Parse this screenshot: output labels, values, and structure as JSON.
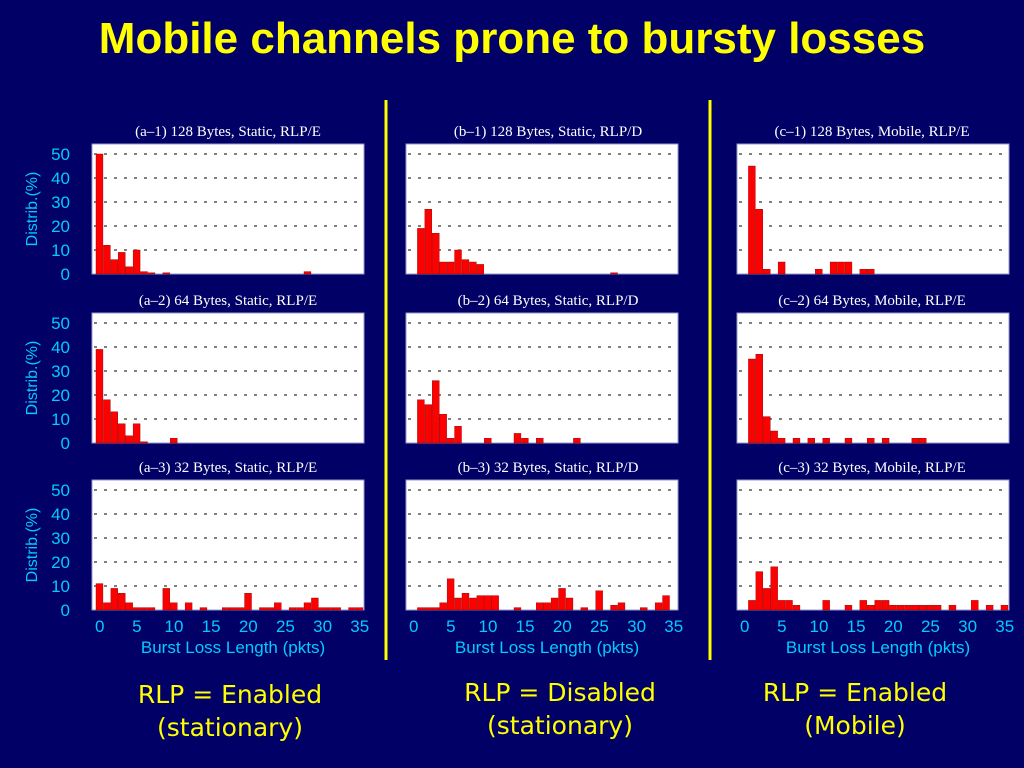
{
  "title": "Mobile channels prone to bursty losses",
  "colors": {
    "background": "#000066",
    "title": "#ffff00",
    "axis_text": "#00ccff",
    "bars": "#ff0000",
    "plot_bg": "#ffffff",
    "caption": "#ffff00",
    "separator": "#ffff00"
  },
  "captions": [
    {
      "line1": "RLP = Enabled",
      "line2": "(stationary)"
    },
    {
      "line1": "RLP = Disabled",
      "line2": "(stationary)"
    },
    {
      "line1": "RLP = Enabled",
      "line2": "(Mobile)"
    }
  ],
  "chart_data": [
    {
      "type": "bar",
      "title": "(a–1) 128 Bytes, Static, RLP/E",
      "ylabel": "Distrib.(%)",
      "xlabel": "",
      "ylim": [
        0,
        50
      ],
      "xlim": [
        0,
        35
      ],
      "yticks": [
        0,
        10,
        20,
        30,
        40,
        50
      ],
      "xticks": [],
      "x": [
        0,
        1,
        2,
        3,
        4,
        5,
        6,
        7,
        9,
        28
      ],
      "values": [
        50,
        12,
        6,
        9,
        3,
        10,
        1,
        0.5,
        0.5,
        1
      ]
    },
    {
      "type": "bar",
      "title": "(b–1) 128 Bytes, Static, RLP/D",
      "ylabel": "",
      "xlabel": "",
      "ylim": [
        0,
        50
      ],
      "xlim": [
        0,
        35
      ],
      "yticks": [],
      "xticks": [],
      "x": [
        1,
        2,
        3,
        4,
        5,
        6,
        7,
        8,
        9,
        27
      ],
      "values": [
        19,
        27,
        17,
        5,
        5,
        10,
        6,
        5,
        4,
        0.5
      ]
    },
    {
      "type": "bar",
      "title": "(c–1) 128 Bytes, Mobile, RLP/E",
      "ylabel": "",
      "xlabel": "",
      "ylim": [
        0,
        50
      ],
      "xlim": [
        0,
        35
      ],
      "yticks": [],
      "xticks": [],
      "x": [
        1,
        2,
        3,
        5,
        10,
        12,
        13,
        14,
        16,
        17
      ],
      "values": [
        45,
        27,
        2,
        5,
        2,
        5,
        5,
        5,
        2,
        2
      ]
    },
    {
      "type": "bar",
      "title": "(a–2) 64 Bytes, Static, RLP/E",
      "ylabel": "Distrib.(%)",
      "xlabel": "",
      "ylim": [
        0,
        50
      ],
      "xlim": [
        0,
        35
      ],
      "yticks": [
        0,
        10,
        20,
        30,
        40,
        50
      ],
      "xticks": [],
      "x": [
        0,
        1,
        2,
        3,
        4,
        5,
        6,
        10
      ],
      "values": [
        39,
        18,
        13,
        8,
        3,
        8,
        0.5,
        2
      ]
    },
    {
      "type": "bar",
      "title": "(b–2) 64 Bytes, Static, RLP/D",
      "ylabel": "",
      "xlabel": "",
      "ylim": [
        0,
        50
      ],
      "xlim": [
        0,
        35
      ],
      "yticks": [],
      "xticks": [],
      "x": [
        1,
        2,
        3,
        4,
        5,
        6,
        10,
        14,
        15,
        17,
        22
      ],
      "values": [
        18,
        16,
        26,
        12,
        2,
        7,
        2,
        4,
        2,
        2,
        2
      ]
    },
    {
      "type": "bar",
      "title": "(c–2) 64 Bytes, Mobile, RLP/E",
      "ylabel": "",
      "xlabel": "",
      "ylim": [
        0,
        50
      ],
      "xlim": [
        0,
        35
      ],
      "yticks": [],
      "xticks": [],
      "x": [
        1,
        2,
        3,
        4,
        5,
        7,
        9,
        11,
        14,
        17,
        19,
        23,
        24
      ],
      "values": [
        35,
        37,
        11,
        5,
        2,
        2,
        2,
        2,
        2,
        2,
        2,
        2,
        2
      ]
    },
    {
      "type": "bar",
      "title": "(a–3) 32 Bytes, Static, RLP/E",
      "ylabel": "Distrib.(%)",
      "xlabel": "Burst Loss Length (pkts)",
      "ylim": [
        0,
        50
      ],
      "xlim": [
        0,
        35
      ],
      "yticks": [
        0,
        10,
        20,
        30,
        40,
        50
      ],
      "xticks": [
        0,
        5,
        10,
        15,
        20,
        25,
        30,
        35
      ],
      "x": [
        0,
        1,
        2,
        3,
        4,
        5,
        6,
        7,
        9,
        10,
        12,
        14,
        17,
        18,
        19,
        20,
        22,
        23,
        24,
        26,
        27,
        28,
        29,
        30,
        31,
        32,
        34,
        35
      ],
      "values": [
        11,
        3,
        9,
        7,
        3,
        1,
        1,
        1,
        9,
        3,
        3,
        1,
        1,
        1,
        1,
        7,
        1,
        1,
        3,
        1,
        1,
        3,
        5,
        1,
        1,
        1,
        1,
        1
      ]
    },
    {
      "type": "bar",
      "title": "(b–3) 32 Bytes, Static, RLP/D",
      "ylabel": "",
      "xlabel": "Burst Loss Length (pkts)",
      "ylim": [
        0,
        50
      ],
      "xlim": [
        0,
        35
      ],
      "yticks": [],
      "xticks": [
        0,
        5,
        10,
        15,
        20,
        25,
        30,
        35
      ],
      "x": [
        1,
        2,
        3,
        4,
        5,
        6,
        7,
        8,
        9,
        10,
        11,
        14,
        17,
        18,
        19,
        20,
        21,
        23,
        25,
        27,
        28,
        31,
        33,
        34
      ],
      "values": [
        1,
        1,
        1,
        3,
        13,
        5,
        7,
        5,
        6,
        6,
        6,
        1,
        3,
        3,
        5,
        9,
        5,
        1,
        8,
        2,
        3,
        1,
        3,
        6
      ]
    },
    {
      "type": "bar",
      "title": "(c–3) 32 Bytes, Mobile, RLP/E",
      "ylabel": "",
      "xlabel": "Burst Loss Length (pkts)",
      "ylim": [
        0,
        50
      ],
      "xlim": [
        0,
        35
      ],
      "yticks": [],
      "xticks": [
        0,
        5,
        10,
        15,
        20,
        25,
        30,
        35
      ],
      "x": [
        1,
        2,
        3,
        4,
        5,
        6,
        7,
        11,
        14,
        16,
        17,
        18,
        19,
        20,
        21,
        22,
        23,
        24,
        25,
        26,
        28,
        31,
        33,
        35
      ],
      "values": [
        4,
        16,
        9,
        18,
        4,
        4,
        2,
        4,
        2,
        4,
        2,
        4,
        4,
        2,
        2,
        2,
        2,
        2,
        2,
        2,
        2,
        4,
        2,
        2
      ]
    }
  ]
}
